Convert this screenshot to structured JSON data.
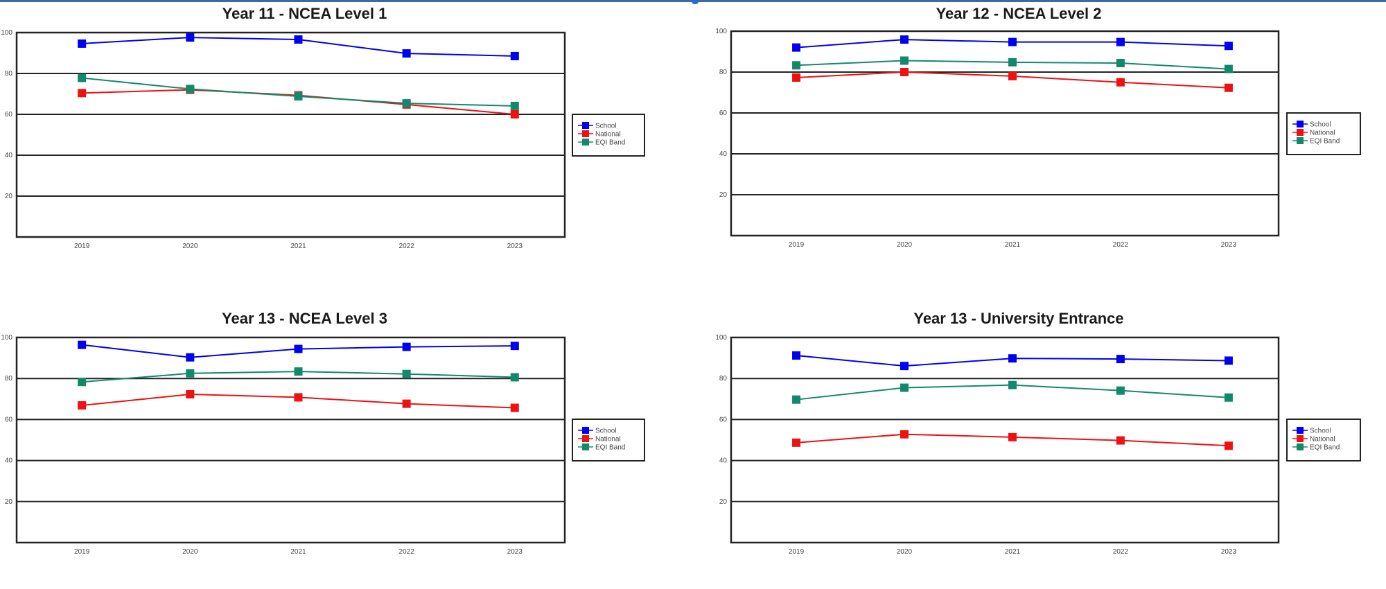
{
  "chart_data": [
    {
      "type": "line",
      "title": "Year 11 - NCEA Level 1",
      "xlabel": "",
      "ylabel": "",
      "categories": [
        "2019",
        "2020",
        "2021",
        "2022",
        "2023"
      ],
      "ylim": [
        0,
        100
      ],
      "yticks": [
        "20",
        "40",
        "60",
        "80",
        "100"
      ],
      "grid": true,
      "legend": "right",
      "series": [
        {
          "name": "School",
          "color": "#0000ee",
          "values": [
            94.6,
            97.6,
            96.6,
            89.8,
            88.5
          ]
        },
        {
          "name": "National",
          "color": "#ee1111",
          "values": [
            70.4,
            72.0,
            69.3,
            64.8,
            60.0
          ]
        },
        {
          "name": "EQI Band",
          "color": "#12896a",
          "values": [
            77.8,
            72.4,
            68.8,
            65.4,
            64.1
          ]
        }
      ]
    },
    {
      "type": "line",
      "title": "Year 12 - NCEA Level 2",
      "xlabel": "",
      "ylabel": "",
      "categories": [
        "2019",
        "2020",
        "2021",
        "2022",
        "2023"
      ],
      "ylim": [
        0,
        100
      ],
      "yticks": [
        "20",
        "40",
        "60",
        "80",
        "100"
      ],
      "grid": true,
      "legend": "right",
      "series": [
        {
          "name": "School",
          "color": "#0000ee",
          "values": [
            92.0,
            95.9,
            94.7,
            94.7,
            92.8
          ]
        },
        {
          "name": "National",
          "color": "#ee1111",
          "values": [
            77.3,
            80.0,
            78.0,
            75.0,
            72.3
          ]
        },
        {
          "name": "EQI Band",
          "color": "#12896a",
          "values": [
            83.3,
            85.6,
            84.8,
            84.4,
            81.5
          ]
        }
      ]
    },
    {
      "type": "line",
      "title": "Year 13 - NCEA Level 3",
      "xlabel": "",
      "ylabel": "",
      "categories": [
        "2019",
        "2020",
        "2021",
        "2022",
        "2023"
      ],
      "ylim": [
        0,
        100
      ],
      "yticks": [
        "20",
        "40",
        "60",
        "80",
        "100"
      ],
      "grid": true,
      "legend": "right",
      "series": [
        {
          "name": "School",
          "color": "#0000ee",
          "values": [
            96.4,
            90.3,
            94.4,
            95.4,
            95.9
          ]
        },
        {
          "name": "National",
          "color": "#ee1111",
          "values": [
            66.9,
            72.3,
            70.8,
            67.7,
            65.7
          ]
        },
        {
          "name": "EQI Band",
          "color": "#12896a",
          "values": [
            78.3,
            82.5,
            83.4,
            82.2,
            80.6
          ]
        }
      ]
    },
    {
      "type": "line",
      "title": "Year 13 - University Entrance",
      "xlabel": "",
      "ylabel": "",
      "categories": [
        "2019",
        "2020",
        "2021",
        "2022",
        "2023"
      ],
      "ylim": [
        0,
        100
      ],
      "yticks": [
        "20",
        "40",
        "60",
        "80",
        "100"
      ],
      "grid": true,
      "legend": "right",
      "series": [
        {
          "name": "School",
          "color": "#0000ee",
          "values": [
            91.2,
            86.1,
            89.8,
            89.5,
            88.7
          ]
        },
        {
          "name": "National",
          "color": "#ee1111",
          "values": [
            48.7,
            52.8,
            51.4,
            49.8,
            47.2
          ]
        },
        {
          "name": "EQI Band",
          "color": "#12896a",
          "values": [
            69.7,
            75.5,
            76.8,
            74.1,
            70.7
          ]
        }
      ]
    }
  ]
}
